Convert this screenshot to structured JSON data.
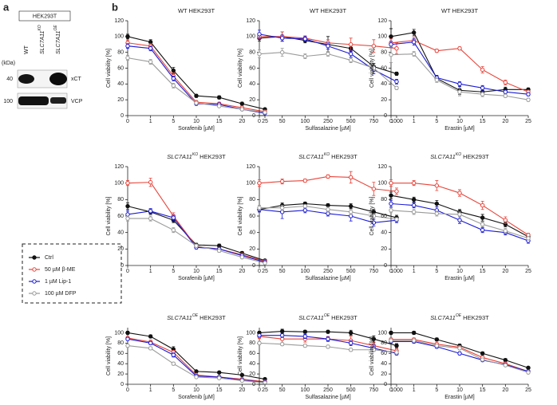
{
  "panel_a": {
    "label": "a",
    "cell_line": "HEK293T",
    "kda_label": "(kDa)",
    "lanes": [
      {
        "text": "WT"
      },
      {
        "gene": "SLC7A11",
        "sup": "KO"
      },
      {
        "gene": "SLC7A11",
        "sup": "OE"
      }
    ],
    "markers": [
      {
        "kda": 40,
        "protein": "xCT"
      },
      {
        "kda": 100,
        "protein": "VCP"
      }
    ]
  },
  "panel_b_label": "b",
  "legend": {
    "series": [
      {
        "name": "Ctrl",
        "color": "#111111",
        "filled": true
      },
      {
        "name": "50 µM β-ME",
        "color": "#e8443a",
        "filled": false
      },
      {
        "name": "1 µM Lip-1",
        "color": "#1a1ad6",
        "filled": false
      },
      {
        "name": "100 µM DFP",
        "color": "#9a9a9a",
        "filled": false
      }
    ]
  },
  "chart_data": [
    {
      "type": "line",
      "title": {
        "text": "WT HEK293T"
      },
      "xlabel": "Sorafenib [µM]",
      "ylabel": "Cell viability [%]",
      "categories": [
        "0",
        "1",
        "5",
        "10",
        "15",
        "20",
        "25"
      ],
      "ylim": [
        0,
        120
      ],
      "yticks": [
        0,
        20,
        40,
        60,
        80,
        100,
        120
      ],
      "series": [
        {
          "values": [
            100,
            93,
            57,
            25,
            23,
            15,
            8
          ],
          "errors": [
            3,
            3,
            4,
            2,
            2,
            2,
            1
          ]
        },
        {
          "values": [
            92,
            88,
            50,
            17,
            15,
            10,
            5
          ],
          "errors": [
            3,
            3,
            4,
            2,
            2,
            1,
            1
          ]
        },
        {
          "values": [
            88,
            85,
            47,
            15,
            14,
            8,
            3
          ],
          "errors": [
            3,
            3,
            3,
            2,
            2,
            1,
            1
          ]
        },
        {
          "values": [
            73,
            68,
            38,
            16,
            12,
            8,
            4
          ],
          "errors": [
            3,
            3,
            3,
            2,
            1,
            1,
            1
          ]
        }
      ]
    },
    {
      "type": "line",
      "title": {
        "text": "WT HEK293T"
      },
      "xlabel": "Sulfasalazine [µM]",
      "ylabel": "Cell viability [%]",
      "categories": [
        "0",
        "50",
        "100",
        "250",
        "500",
        "750",
        "1000"
      ],
      "ylim": [
        0,
        120
      ],
      "yticks": [
        0,
        20,
        40,
        60,
        80,
        100,
        120
      ],
      "series": [
        {
          "values": [
            98,
            100,
            95,
            90,
            85,
            62,
            53
          ],
          "errors": [
            4,
            6,
            3,
            10,
            4,
            4,
            2
          ]
        },
        {
          "values": [
            100,
            100,
            98,
            92,
            90,
            88,
            85
          ],
          "errors": [
            3,
            6,
            3,
            4,
            8,
            8,
            7
          ]
        },
        {
          "values": [
            103,
            98,
            97,
            88,
            78,
            58,
            43
          ],
          "errors": [
            5,
            4,
            3,
            4,
            4,
            5,
            3
          ]
        },
        {
          "values": [
            78,
            80,
            75,
            78,
            70,
            60,
            35
          ],
          "errors": [
            5,
            5,
            3,
            3,
            3,
            3,
            2
          ]
        }
      ]
    },
    {
      "type": "line",
      "title": {
        "text": "WT HEK293T"
      },
      "xlabel": "Erastin [µM]",
      "ylabel": "Cell viability [%]",
      "categories": [
        "0",
        "1",
        "5",
        "10",
        "15",
        "20",
        "25"
      ],
      "ylim": [
        0,
        120
      ],
      "yticks": [
        0,
        20,
        40,
        60,
        80,
        100,
        120
      ],
      "series": [
        {
          "values": [
            100,
            105,
            47,
            32,
            30,
            33,
            33
          ],
          "errors": [
            10,
            4,
            3,
            5,
            4,
            3,
            2
          ]
        },
        {
          "values": [
            92,
            95,
            82,
            85,
            58,
            42,
            30
          ],
          "errors": [
            5,
            4,
            2,
            2,
            4,
            3,
            2
          ]
        },
        {
          "values": [
            90,
            93,
            48,
            40,
            35,
            30,
            27
          ],
          "errors": [
            4,
            4,
            3,
            3,
            3,
            2,
            2
          ]
        },
        {
          "values": [
            77,
            78,
            45,
            30,
            27,
            25,
            20
          ],
          "errors": [
            10,
            3,
            3,
            5,
            3,
            2,
            2
          ]
        }
      ]
    },
    {
      "type": "line",
      "title": {
        "gene": "SLC7A11",
        "sup": "KO",
        "text": " HEK293T"
      },
      "xlabel": "Sorafenib [µM]",
      "ylabel": "Cell viability [%]",
      "categories": [
        "0",
        "1",
        "5",
        "10",
        "15",
        "20",
        "25"
      ],
      "ylim": [
        0,
        120
      ],
      "yticks": [
        0,
        20,
        40,
        60,
        80,
        100,
        120
      ],
      "series": [
        {
          "values": [
            72,
            65,
            55,
            25,
            24,
            15,
            6
          ],
          "errors": [
            4,
            3,
            3,
            2,
            2,
            2,
            1
          ]
        },
        {
          "values": [
            100,
            101,
            60,
            23,
            20,
            13,
            5
          ],
          "errors": [
            3,
            5,
            4,
            2,
            2,
            2,
            1
          ]
        },
        {
          "values": [
            62,
            66,
            58,
            22,
            20,
            12,
            4
          ],
          "errors": [
            4,
            3,
            3,
            2,
            2,
            1,
            1
          ]
        },
        {
          "values": [
            57,
            57,
            43,
            24,
            18,
            10,
            3
          ],
          "errors": [
            3,
            3,
            3,
            2,
            2,
            1,
            1
          ]
        }
      ]
    },
    {
      "type": "line",
      "title": {
        "gene": "SLC7A11",
        "sup": "KO",
        "text": " HEK293T"
      },
      "xlabel": "Sulfasalazine [µM]",
      "ylabel": "Cell viability [%]",
      "categories": [
        "0",
        "50",
        "100",
        "250",
        "500",
        "750",
        "1000"
      ],
      "ylim": [
        0,
        120
      ],
      "yticks": [
        0,
        20,
        40,
        60,
        80,
        100,
        120
      ],
      "series": [
        {
          "values": [
            68,
            73,
            75,
            73,
            72,
            65,
            58
          ],
          "errors": [
            3,
            3,
            2,
            2,
            3,
            3,
            3
          ]
        },
        {
          "values": [
            100,
            102,
            103,
            108,
            107,
            93,
            90
          ],
          "errors": [
            4,
            3,
            2,
            2,
            7,
            8,
            4
          ]
        },
        {
          "values": [
            68,
            65,
            67,
            63,
            60,
            52,
            55
          ],
          "errors": [
            3,
            8,
            3,
            3,
            6,
            4,
            3
          ]
        },
        {
          "values": [
            70,
            70,
            72,
            68,
            65,
            60,
            56
          ],
          "errors": [
            3,
            3,
            2,
            3,
            3,
            3,
            2
          ]
        }
      ]
    },
    {
      "type": "line",
      "title": {
        "gene": "SLC7A11",
        "sup": "KO",
        "text": " HEK293T"
      },
      "xlabel": "Erastin [µM]",
      "ylabel": "Cell viability [%]",
      "categories": [
        "0",
        "1",
        "5",
        "10",
        "15",
        "20",
        "25"
      ],
      "ylim": [
        0,
        120
      ],
      "yticks": [
        0,
        20,
        40,
        60,
        80,
        100,
        120
      ],
      "series": [
        {
          "values": [
            85,
            80,
            75,
            65,
            58,
            50,
            35
          ],
          "errors": [
            4,
            3,
            4,
            3,
            4,
            3,
            2
          ]
        },
        {
          "values": [
            100,
            100,
            97,
            88,
            73,
            55,
            37
          ],
          "errors": [
            4,
            3,
            6,
            4,
            5,
            4,
            2
          ]
        },
        {
          "values": [
            75,
            73,
            67,
            55,
            43,
            40,
            30
          ],
          "errors": [
            4,
            3,
            4,
            4,
            3,
            3,
            3
          ]
        },
        {
          "values": [
            67,
            65,
            63,
            62,
            50,
            42,
            33
          ],
          "errors": [
            3,
            3,
            3,
            3,
            3,
            3,
            2
          ]
        }
      ]
    },
    {
      "type": "line",
      "title": {
        "gene": "SLC7A11",
        "sup": "OE",
        "text": " HEK293T"
      },
      "xlabel": "Sorafenib [µM]",
      "ylabel": "Cell viability [%]",
      "categories": [
        "0",
        "1",
        "5",
        "10",
        "15",
        "20",
        "25"
      ],
      "ylim": [
        0,
        110
      ],
      "yticks": [
        0,
        20,
        40,
        60,
        80,
        100
      ],
      "series": [
        {
          "values": [
            100,
            93,
            68,
            25,
            23,
            18,
            10
          ],
          "errors": [
            3,
            3,
            5,
            2,
            2,
            2,
            2
          ]
        },
        {
          "values": [
            90,
            82,
            62,
            18,
            14,
            10,
            5
          ],
          "errors": [
            3,
            4,
            4,
            2,
            2,
            1,
            1
          ]
        },
        {
          "values": [
            88,
            80,
            57,
            16,
            14,
            8,
            4
          ],
          "errors": [
            3,
            3,
            4,
            2,
            2,
            1,
            1
          ]
        },
        {
          "values": [
            75,
            70,
            40,
            14,
            12,
            7,
            3
          ],
          "errors": [
            3,
            3,
            3,
            2,
            1,
            1,
            1
          ]
        }
      ]
    },
    {
      "type": "line",
      "title": {
        "gene": "SLC7A11",
        "sup": "OE",
        "text": " HEK293T"
      },
      "xlabel": "Sulfasalazine [µM]",
      "ylabel": "Cell viability [%]",
      "categories": [
        "0",
        "50",
        "100",
        "250",
        "500",
        "750",
        "1000"
      ],
      "ylim": [
        0,
        110
      ],
      "yticks": [
        0,
        20,
        40,
        60,
        80,
        100
      ],
      "series": [
        {
          "values": [
            100,
            103,
            102,
            102,
            100,
            88,
            75
          ],
          "errors": [
            3,
            4,
            3,
            3,
            5,
            6,
            4
          ]
        },
        {
          "values": [
            93,
            88,
            88,
            88,
            85,
            75,
            65
          ],
          "errors": [
            4,
            8,
            6,
            5,
            8,
            6,
            4
          ]
        },
        {
          "values": [
            95,
            95,
            93,
            88,
            80,
            70,
            60
          ],
          "errors": [
            3,
            4,
            4,
            4,
            5,
            6,
            3
          ]
        },
        {
          "values": [
            80,
            78,
            75,
            73,
            67,
            67,
            62
          ],
          "errors": [
            3,
            3,
            3,
            3,
            3,
            3,
            3
          ]
        }
      ]
    },
    {
      "type": "line",
      "title": {
        "gene": "SLC7A11",
        "sup": "OE",
        "text": " HEK293T"
      },
      "xlabel": "Erastin [µM]",
      "ylabel": "Cell viability [%]",
      "categories": [
        "0",
        "1",
        "5",
        "10",
        "15",
        "20",
        "25"
      ],
      "ylim": [
        0,
        110
      ],
      "yticks": [
        0,
        20,
        40,
        60,
        80,
        100
      ],
      "series": [
        {
          "values": [
            100,
            100,
            87,
            75,
            60,
            47,
            32
          ],
          "errors": [
            3,
            3,
            3,
            3,
            3,
            3,
            2
          ]
        },
        {
          "values": [
            87,
            87,
            78,
            72,
            52,
            40,
            25
          ],
          "errors": [
            3,
            3,
            3,
            3,
            3,
            3,
            2
          ]
        },
        {
          "values": [
            83,
            83,
            73,
            60,
            47,
            38,
            25
          ],
          "errors": [
            3,
            3,
            3,
            3,
            2,
            2,
            2
          ]
        },
        {
          "values": [
            85,
            85,
            75,
            70,
            48,
            37,
            23
          ],
          "errors": [
            3,
            3,
            3,
            3,
            2,
            2,
            2
          ]
        }
      ]
    }
  ]
}
